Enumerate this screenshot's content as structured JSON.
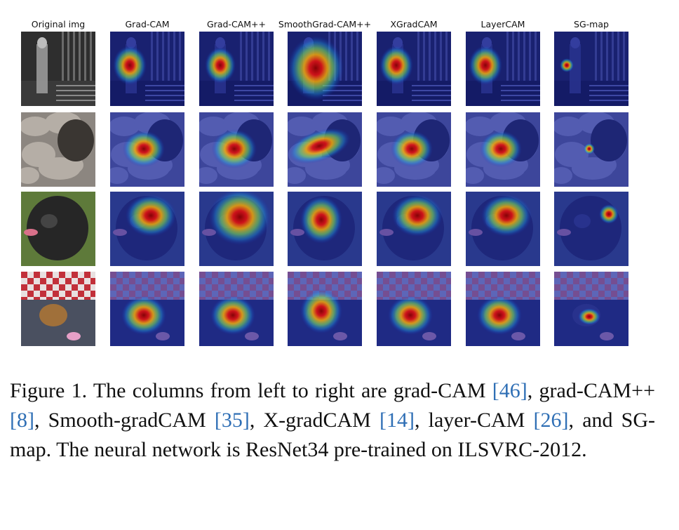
{
  "figure": {
    "columns": [
      "Original img",
      "Grad-CAM",
      "Grad-CAM++",
      "SmoothGrad-CAM++",
      "XGradCAM",
      "LayerCAM",
      "SG-map"
    ],
    "rows": [
      "person-with-guitar",
      "rocky-ground",
      "black-dog",
      "dog-under-table"
    ]
  },
  "caption": {
    "label": "Figure 1.",
    "t1": "The columns from left to right are grad-CAM ",
    "c1": "[46]",
    "t2": ", grad-CAM++ ",
    "c2": "[8]",
    "t3": ", Smooth-gradCAM ",
    "c3": "[35]",
    "t4": ", X-gradCAM ",
    "c4": "[14]",
    "t5": ", layer-CAM ",
    "c5": "[26]",
    "t6": ", and SG-map.  The neural network is ResNet34 pre-trained on ILSVRC-2012.",
    "link_color": "#2f6fb5"
  }
}
